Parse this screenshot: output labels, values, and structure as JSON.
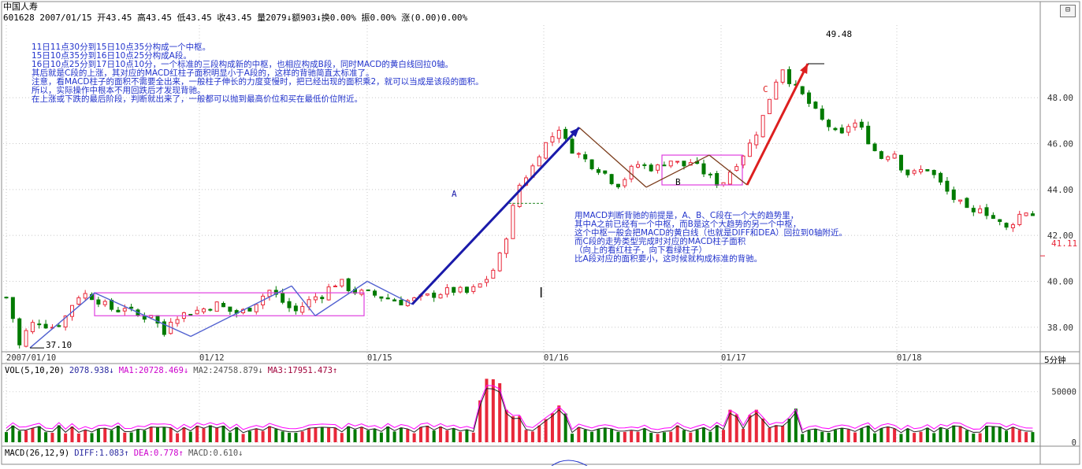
{
  "header": {
    "stock_name": "中国人寿",
    "info_line": "601628 2007/01/15 开43.45 高43.45 低43.45 收43.45 量2079↓额903↓换0.00% 振0.00% 涨(0.00)0.00%"
  },
  "annotations": {
    "block1": [
      "11日11点30分到15日10点35分构成一个中枢。",
      "15日10点35分到16日10点25分构成A段。",
      "16日10点25分到17日10点10分，一个标准的三段构成新的中枢，也相应构成B段，同时MACD的黄白线回拉0轴。",
      "其后就是C段的上涨，其对应的MACD红柱子面积明显小于A段的，这样的背驰简直太标准了。",
      "注意，看MACD柱子的面积不需要全出来，一般柱子伸长的力度变慢时，把已经出现的面积乘2，就可以当成是该段的面积。",
      "所以，实际操作中根本不用回跌后才发现背驰。",
      "在上涨或下跌的最后阶段，判断就出来了，一般都可以抛到最高价位和买在最低价位附近。"
    ],
    "block2": [
      "用MACD判断背驰的前提是，A、B、C段在一个大的趋势里，",
      "其中A之前已经有一个中枢，而B是这个大趋势的另一个中枢，",
      "这个中枢一般会把MACD的黄白线（也就是DIFF和DEA）回拉到0轴附近。",
      "而C段的走势类型完成时对应的MACD柱子面积",
      "（向上的看红柱子，向下看绿柱子）",
      "比A段对应的面积要小，这时候就构成标准的背驰。"
    ],
    "label_a": "A",
    "label_b": "B",
    "label_c": "C",
    "high_mark": "49.48",
    "low_mark": "37.10",
    "current_price": "41.11"
  },
  "volume_header": {
    "vol": "VOL(5,10,20)",
    "vol_val": "2078.938↓",
    "ma1": "MA1:20728.469↓",
    "ma2": "MA2:24758.879↓",
    "ma3": "MA3:17951.473↑"
  },
  "macd_header": {
    "name": "MACD(26,12,9)",
    "diff": "DIFF:1.083↑",
    "dea": "DEA:0.778↑",
    "macd": "MACD:0.610↓"
  },
  "period_label": "5分钟",
  "colors": {
    "up": "#e8283a",
    "down": "#007a00",
    "annotation": "#2233cc",
    "arrow_a": "#1a1aaa",
    "arrow_c": "#dd1f1f",
    "box": "#e040e0",
    "zigzag": "#5060d0",
    "zigzag_b": "#7a3b1a",
    "ma1": "#222222",
    "ma2": "#ff00ff",
    "ma3": "#a000a0"
  },
  "chart_data": {
    "type": "candlestick",
    "title": "中国人寿 601628 5分钟",
    "x_ticks": [
      "2007/01/10",
      "01/12",
      "01/15",
      "01/16",
      "01/17",
      "01/18"
    ],
    "y_ticks": [
      38.0,
      40.0,
      42.0,
      44.0,
      46.0,
      48.0
    ],
    "ylim": [
      37.0,
      50.2
    ],
    "price_path": [
      [
        0,
        39.3
      ],
      [
        2,
        38.8
      ],
      [
        6,
        37.2
      ],
      [
        10,
        38.0
      ],
      [
        14,
        38.3
      ],
      [
        18,
        38.1
      ],
      [
        22,
        38.0
      ],
      [
        26,
        38.3
      ],
      [
        30,
        39.0
      ],
      [
        34,
        39.5
      ],
      [
        40,
        39.3
      ],
      [
        46,
        38.9
      ],
      [
        50,
        38.7
      ],
      [
        54,
        38.9
      ],
      [
        58,
        38.6
      ],
      [
        62,
        38.4
      ],
      [
        66,
        38.6
      ],
      [
        70,
        38.0
      ],
      [
        72,
        37.7
      ],
      [
        74,
        38.3
      ],
      [
        78,
        38.5
      ],
      [
        82,
        38.6
      ],
      [
        86,
        38.7
      ],
      [
        90,
        38.8
      ],
      [
        96,
        39.0
      ],
      [
        100,
        38.8
      ],
      [
        104,
        38.6
      ],
      [
        108,
        38.7
      ],
      [
        112,
        38.9
      ],
      [
        116,
        39.3
      ],
      [
        120,
        39.6
      ],
      [
        124,
        39.3
      ],
      [
        128,
        38.9
      ],
      [
        132,
        38.7
      ],
      [
        136,
        39.0
      ],
      [
        140,
        39.3
      ],
      [
        144,
        39.4
      ],
      [
        148,
        39.8
      ],
      [
        152,
        40.0
      ],
      [
        156,
        39.7
      ],
      [
        160,
        39.5
      ],
      [
        164,
        39.5
      ],
      [
        168,
        39.4
      ],
      [
        172,
        39.3
      ],
      [
        176,
        39.2
      ],
      [
        180,
        39.1
      ],
      [
        186,
        39.2
      ],
      [
        190,
        39.3
      ],
      [
        194,
        39.4
      ],
      [
        198,
        39.5
      ],
      [
        202,
        39.6
      ],
      [
        206,
        39.6
      ],
      [
        210,
        39.5
      ],
      [
        214,
        39.7
      ],
      [
        218,
        40.0
      ],
      [
        222,
        40.5
      ],
      [
        226,
        41.3
      ],
      [
        228,
        42.0
      ],
      [
        230,
        43.0
      ],
      [
        232,
        43.4
      ],
      [
        234,
        44.2
      ],
      [
        240,
        45.0
      ],
      [
        244,
        45.8
      ],
      [
        248,
        46.2
      ],
      [
        252,
        46.7
      ],
      [
        256,
        45.9
      ],
      [
        260,
        45.6
      ],
      [
        264,
        45.3
      ],
      [
        268,
        45.0
      ],
      [
        272,
        44.8
      ],
      [
        276,
        44.4
      ],
      [
        280,
        44.2
      ],
      [
        284,
        44.8
      ],
      [
        288,
        45.1
      ],
      [
        292,
        45.0
      ],
      [
        296,
        44.9
      ],
      [
        300,
        45.2
      ],
      [
        304,
        45.3
      ],
      [
        308,
        45.0
      ],
      [
        312,
        45.2
      ],
      [
        316,
        44.9
      ],
      [
        320,
        44.6
      ],
      [
        324,
        44.3
      ],
      [
        326,
        44.2
      ],
      [
        330,
        44.8
      ],
      [
        334,
        45.3
      ],
      [
        338,
        45.8
      ],
      [
        342,
        46.5
      ],
      [
        346,
        47.4
      ],
      [
        350,
        48.6
      ],
      [
        354,
        49.3
      ],
      [
        356,
        48.9
      ],
      [
        360,
        48.4
      ],
      [
        364,
        48.0
      ],
      [
        368,
        47.5
      ],
      [
        372,
        47.0
      ],
      [
        376,
        46.7
      ],
      [
        380,
        46.2
      ],
      [
        384,
        46.8
      ],
      [
        388,
        46.9
      ],
      [
        392,
        46.3
      ],
      [
        396,
        45.7
      ],
      [
        400,
        45.3
      ],
      [
        404,
        45.8
      ],
      [
        408,
        45.0
      ],
      [
        412,
        44.6
      ],
      [
        416,
        44.8
      ],
      [
        420,
        44.9
      ],
      [
        424,
        44.5
      ],
      [
        428,
        44.0
      ],
      [
        432,
        43.6
      ],
      [
        436,
        43.3
      ],
      [
        440,
        42.8
      ],
      [
        444,
        43.3
      ],
      [
        448,
        42.9
      ],
      [
        452,
        42.6
      ],
      [
        456,
        42.3
      ],
      [
        460,
        42.7
      ],
      [
        464,
        43.1
      ],
      [
        468,
        42.9
      ],
      [
        470,
        43.0
      ]
    ],
    "zigzag_segments": {
      "pivot_prices": [
        37.1,
        39.5,
        37.6,
        39.8,
        38.5,
        40.0,
        39.0,
        46.7,
        44.1,
        45.5,
        44.2,
        49.48
      ]
    },
    "zones": [
      {
        "name": "中枢1",
        "price_low": 38.5,
        "price_high": 39.5
      },
      {
        "name": "中枢B",
        "price_low": 44.2,
        "price_high": 45.5
      }
    ],
    "volume": {
      "ylim": [
        0,
        70000
      ],
      "y_ticks": [
        0,
        50000
      ]
    },
    "macd": {
      "diff": 1.083,
      "dea": 0.778,
      "macd": 0.61
    }
  }
}
